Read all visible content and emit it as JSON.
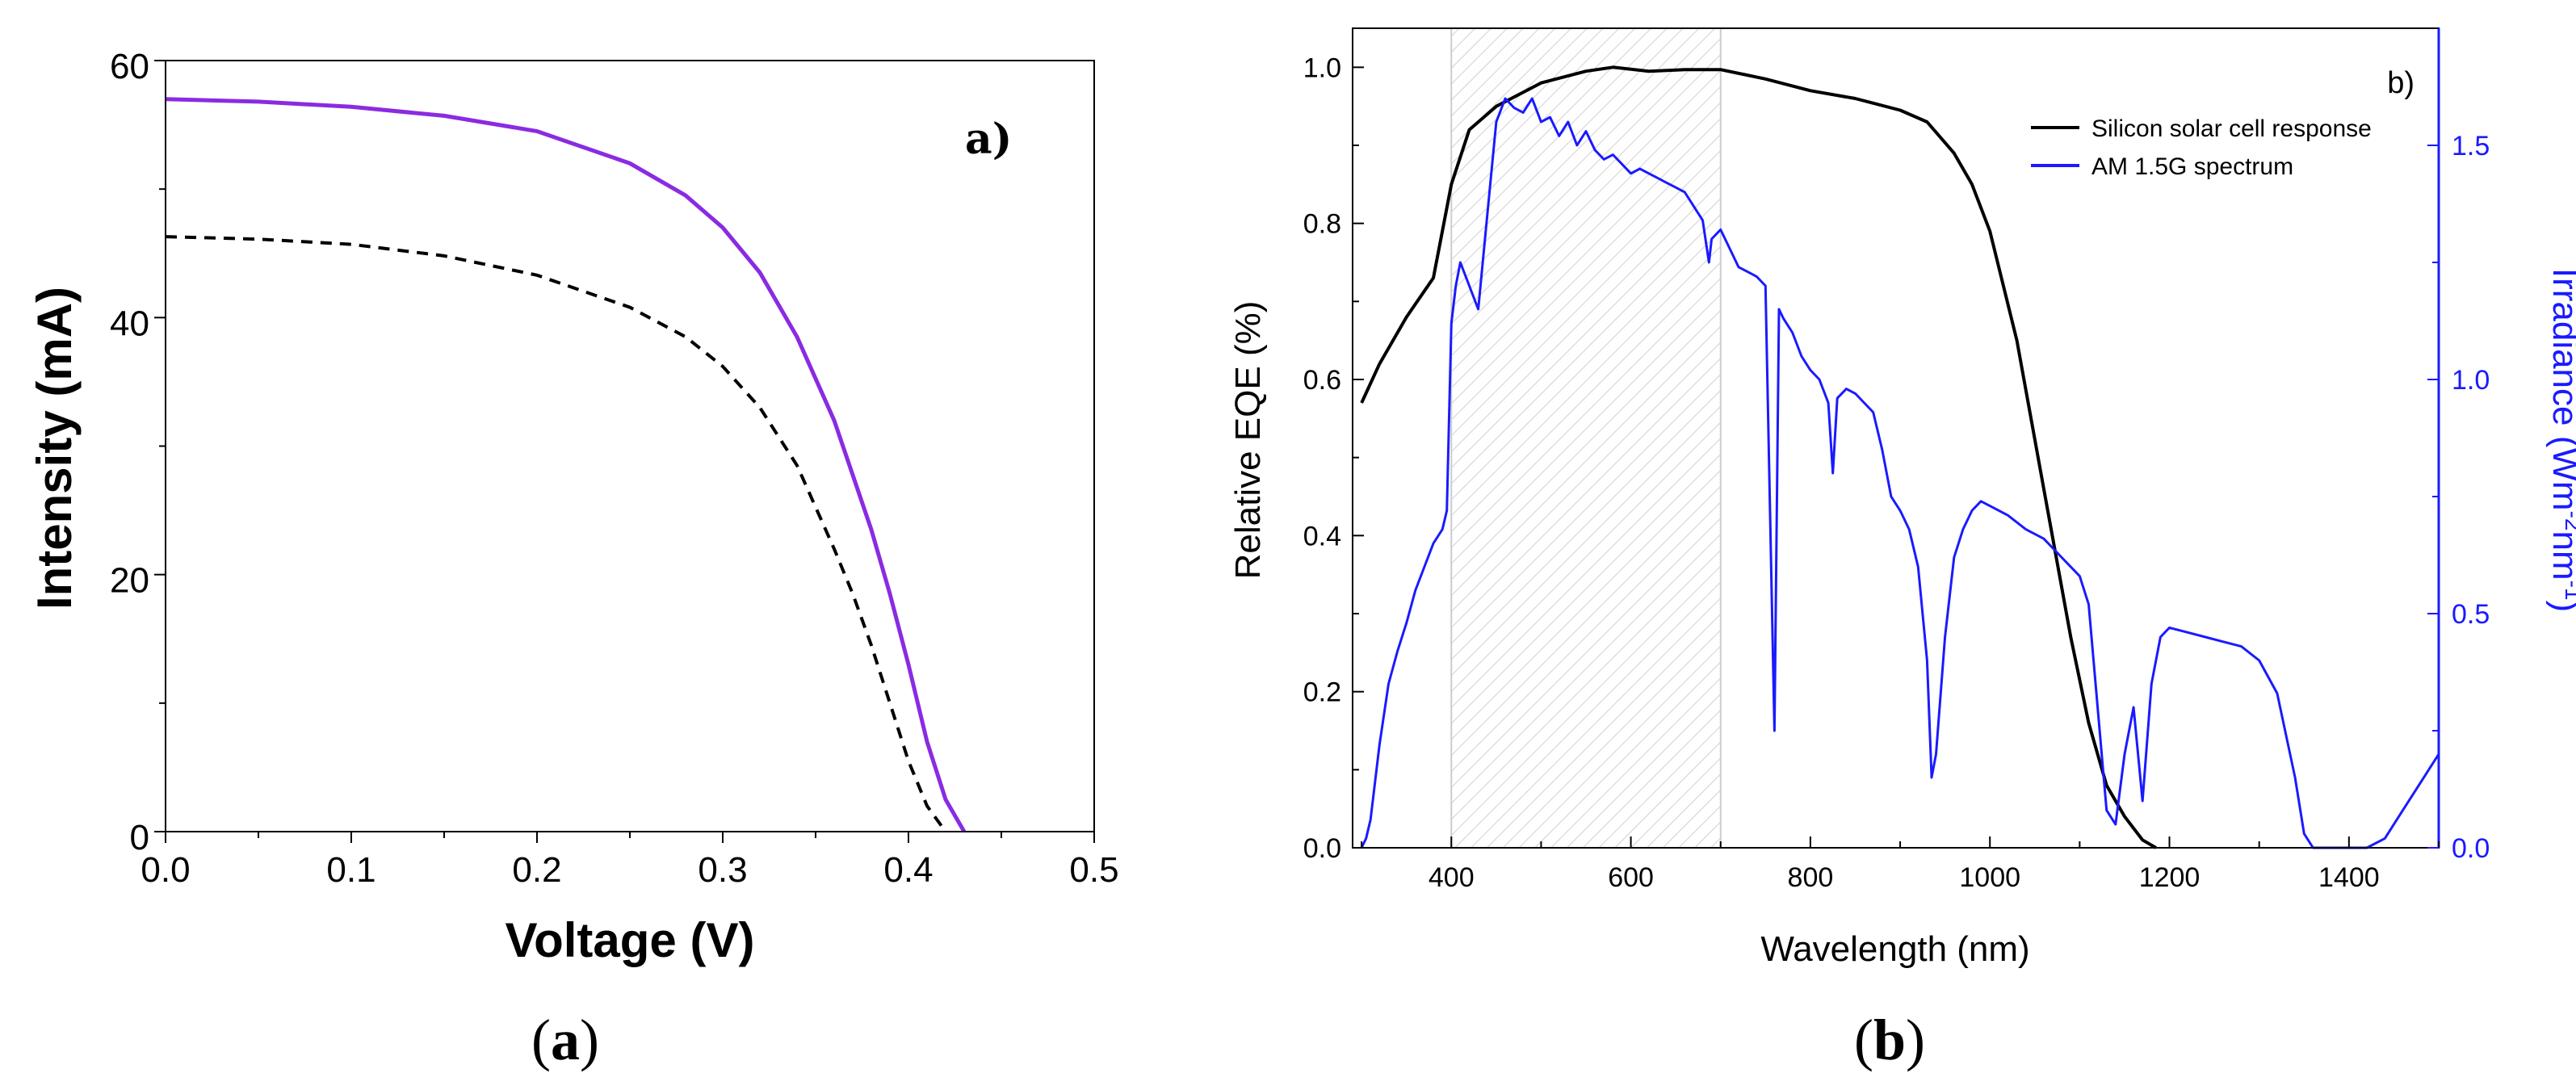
{
  "chart_data": [
    {
      "type": "line",
      "panel_tag": "a)",
      "caption_open": "(",
      "caption_letter": "a",
      "caption_close": ")",
      "xlabel": "Voltage (V)",
      "ylabel": "Intensity (mA)",
      "xlim": [
        0,
        0.5
      ],
      "ylim": [
        0,
        60
      ],
      "xticks": [
        "0.0",
        "0.1",
        "0.2",
        "0.3",
        "0.4",
        "0.5"
      ],
      "yticks": [
        "0",
        "20",
        "40",
        "60"
      ],
      "colors": {
        "solid": "#8a2be2",
        "dashed": "#000000"
      },
      "series": [
        {
          "name": "solid curve",
          "style": "solid",
          "x": [
            0,
            0.05,
            0.1,
            0.15,
            0.2,
            0.25,
            0.28,
            0.3,
            0.32,
            0.34,
            0.36,
            0.38,
            0.39,
            0.4,
            0.41,
            0.42,
            0.43
          ],
          "y": [
            57,
            56.8,
            56.4,
            55.7,
            54.5,
            52.0,
            49.5,
            47.0,
            43.5,
            38.5,
            32.0,
            23.5,
            18.5,
            13.0,
            7.0,
            2.5,
            0
          ]
        },
        {
          "name": "dashed curve",
          "style": "dashed",
          "x": [
            0,
            0.05,
            0.1,
            0.15,
            0.2,
            0.25,
            0.28,
            0.3,
            0.32,
            0.34,
            0.36,
            0.37,
            0.38,
            0.39,
            0.4,
            0.41,
            0.42
          ],
          "y": [
            46.3,
            46.1,
            45.7,
            44.8,
            43.3,
            40.8,
            38.5,
            36.2,
            33.0,
            28.5,
            22.0,
            18.5,
            14.5,
            10.0,
            5.5,
            2.0,
            0
          ]
        }
      ]
    },
    {
      "type": "line",
      "panel_tag": "b)",
      "caption_open": "(",
      "caption_letter": "b",
      "caption_close": ")",
      "xlabel": "Wavelength (nm)",
      "ylabel": "Relative EQE (%)",
      "y2label_main": "Irradiance (Wm",
      "y2label_sup1": "-2",
      "y2label_mid": "nm",
      "y2label_sup2": "-1",
      "y2label_end": ")",
      "xlim": [
        290,
        1500
      ],
      "ylim": [
        0,
        1.05
      ],
      "y2lim": [
        0,
        1.75
      ],
      "xticks": [
        "400",
        "600",
        "800",
        "1000",
        "1200",
        "1400"
      ],
      "yticks": [
        "0.0",
        "0.2",
        "0.4",
        "0.6",
        "0.8",
        "1.0"
      ],
      "y2ticks": [
        "0.0",
        "0.5",
        "1.0",
        "1.5"
      ],
      "shaded_region": [
        400,
        700
      ],
      "colors": {
        "eqe": "#000000",
        "spectrum": "#1a1aff",
        "hatch": "#cccccc"
      },
      "legend": [
        "Silicon solar cell response",
        "AM 1.5G spectrum"
      ],
      "series": [
        {
          "name": "Silicon solar cell response",
          "axis": "left",
          "x": [
            300,
            320,
            350,
            380,
            400,
            420,
            450,
            500,
            550,
            580,
            620,
            660,
            700,
            750,
            800,
            850,
            900,
            930,
            960,
            980,
            1000,
            1030,
            1060,
            1090,
            1110,
            1130,
            1150,
            1170,
            1185
          ],
          "y": [
            0.57,
            0.62,
            0.68,
            0.73,
            0.85,
            0.92,
            0.95,
            0.98,
            0.995,
            1.0,
            0.995,
            0.997,
            0.997,
            0.985,
            0.97,
            0.96,
            0.945,
            0.93,
            0.89,
            0.85,
            0.79,
            0.65,
            0.46,
            0.27,
            0.16,
            0.08,
            0.04,
            0.01,
            0.0
          ]
        },
        {
          "name": "AM 1.5G spectrum",
          "axis": "right",
          "x": [
            300,
            305,
            310,
            320,
            330,
            340,
            350,
            360,
            370,
            380,
            390,
            395,
            400,
            405,
            410,
            420,
            430,
            440,
            450,
            460,
            470,
            480,
            490,
            500,
            510,
            520,
            530,
            540,
            550,
            560,
            570,
            580,
            590,
            600,
            610,
            620,
            630,
            640,
            650,
            660,
            670,
            680,
            687,
            690,
            700,
            710,
            720,
            730,
            740,
            750,
            760,
            765,
            770,
            780,
            790,
            800,
            810,
            820,
            825,
            830,
            840,
            850,
            860,
            870,
            880,
            890,
            900,
            910,
            920,
            930,
            935,
            940,
            950,
            960,
            970,
            980,
            990,
            1000,
            1020,
            1040,
            1060,
            1080,
            1100,
            1110,
            1120,
            1130,
            1140,
            1150,
            1160,
            1170,
            1180,
            1190,
            1200,
            1220,
            1240,
            1260,
            1280,
            1300,
            1320,
            1340,
            1350,
            1360,
            1380,
            1400,
            1420,
            1440,
            1460,
            1480,
            1500
          ],
          "y": [
            0.0,
            0.02,
            0.06,
            0.22,
            0.35,
            0.42,
            0.48,
            0.55,
            0.6,
            0.65,
            0.68,
            0.72,
            1.12,
            1.2,
            1.25,
            1.2,
            1.15,
            1.35,
            1.55,
            1.6,
            1.58,
            1.57,
            1.6,
            1.55,
            1.56,
            1.52,
            1.55,
            1.5,
            1.53,
            1.49,
            1.47,
            1.48,
            1.46,
            1.44,
            1.45,
            1.44,
            1.43,
            1.42,
            1.41,
            1.4,
            1.37,
            1.34,
            1.25,
            1.3,
            1.32,
            1.28,
            1.24,
            1.23,
            1.22,
            1.2,
            0.25,
            1.15,
            1.13,
            1.1,
            1.05,
            1.02,
            1.0,
            0.95,
            0.8,
            0.96,
            0.98,
            0.97,
            0.95,
            0.93,
            0.85,
            0.75,
            0.72,
            0.68,
            0.6,
            0.4,
            0.15,
            0.2,
            0.45,
            0.62,
            0.68,
            0.72,
            0.74,
            0.73,
            0.71,
            0.68,
            0.66,
            0.62,
            0.58,
            0.52,
            0.3,
            0.08,
            0.05,
            0.2,
            0.3,
            0.1,
            0.35,
            0.45,
            0.47,
            0.46,
            0.45,
            0.44,
            0.43,
            0.4,
            0.33,
            0.15,
            0.03,
            0.0,
            0.0,
            0.0,
            0.0,
            0.02,
            0.08,
            0.14,
            0.2
          ]
        }
      ]
    }
  ]
}
